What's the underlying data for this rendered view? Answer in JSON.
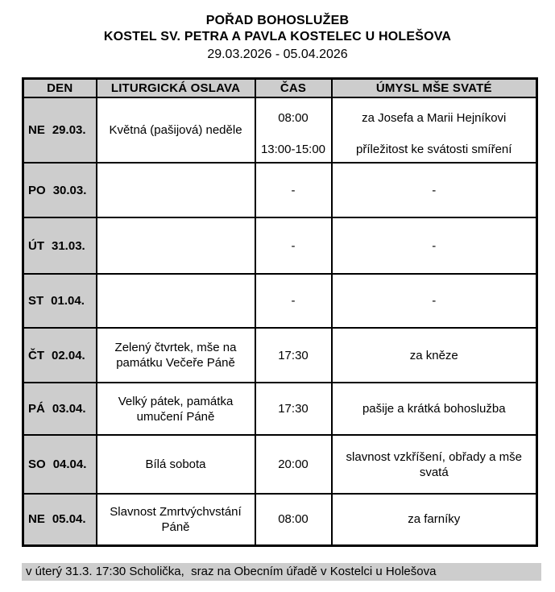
{
  "title": {
    "line1": "POŘAD BOHOSLUŽEB",
    "line2": "KOSTEL SV. PETRA A PAVLA KOSTELEC U HOLEŠOVA",
    "date_range": "29.03.2026 - 05.04.2026"
  },
  "table": {
    "headers": [
      "DEN",
      "LITURGICKÁ OSLAVA",
      "ČAS",
      "ÚMYSL MŠE SVATÉ"
    ],
    "rows": [
      {
        "day": "NE",
        "date": "29.03.",
        "celebration": "Květná (pašijová) neděle",
        "entries": [
          {
            "time": "08:00",
            "intention": "za Josefa a Marii Hejníkovi"
          },
          {
            "time": "13:00-15:00",
            "intention": "příležitost ke svátosti smíření"
          }
        ]
      },
      {
        "day": "PO",
        "date": "30.03.",
        "celebration": "",
        "entries": [
          {
            "time": "-",
            "intention": "-"
          }
        ]
      },
      {
        "day": "ÚT",
        "date": "31.03.",
        "celebration": "",
        "entries": [
          {
            "time": "-",
            "intention": "-"
          }
        ]
      },
      {
        "day": "ST",
        "date": "01.04.",
        "celebration": "",
        "entries": [
          {
            "time": "-",
            "intention": "-"
          }
        ]
      },
      {
        "day": "ČT",
        "date": "02.04.",
        "celebration": "Zelený čtvrtek, mše na památku Večeře Páně",
        "entries": [
          {
            "time": "17:30",
            "intention": "za kněze"
          }
        ]
      },
      {
        "day": "PÁ",
        "date": "03.04.",
        "celebration": "Velký pátek, památka umučení Páně",
        "entries": [
          {
            "time": "17:30",
            "intention": "pašije a krátká bohoslužba"
          }
        ]
      },
      {
        "day": "SO",
        "date": "04.04.",
        "celebration": "Bílá sobota",
        "entries": [
          {
            "time": "20:00",
            "intention": "slavnost vzkříšení, obřady a mše svatá"
          }
        ]
      },
      {
        "day": "NE",
        "date": "05.04.",
        "celebration": "Slavnost Zmrtvýchvstání Páně",
        "entries": [
          {
            "time": "08:00",
            "intention": "za farníky"
          }
        ]
      }
    ]
  },
  "footer": {
    "note": "v úterý 31.3. 17:30 Scholička,  sraz na Obecním úřadě v Kostelci u Holešova"
  },
  "colors": {
    "header_bg": "#cdcdcd",
    "day_column_bg": "#cdcdcd",
    "footer_bg": "#cdcdcd",
    "border": "#000000",
    "text": "#000000"
  }
}
